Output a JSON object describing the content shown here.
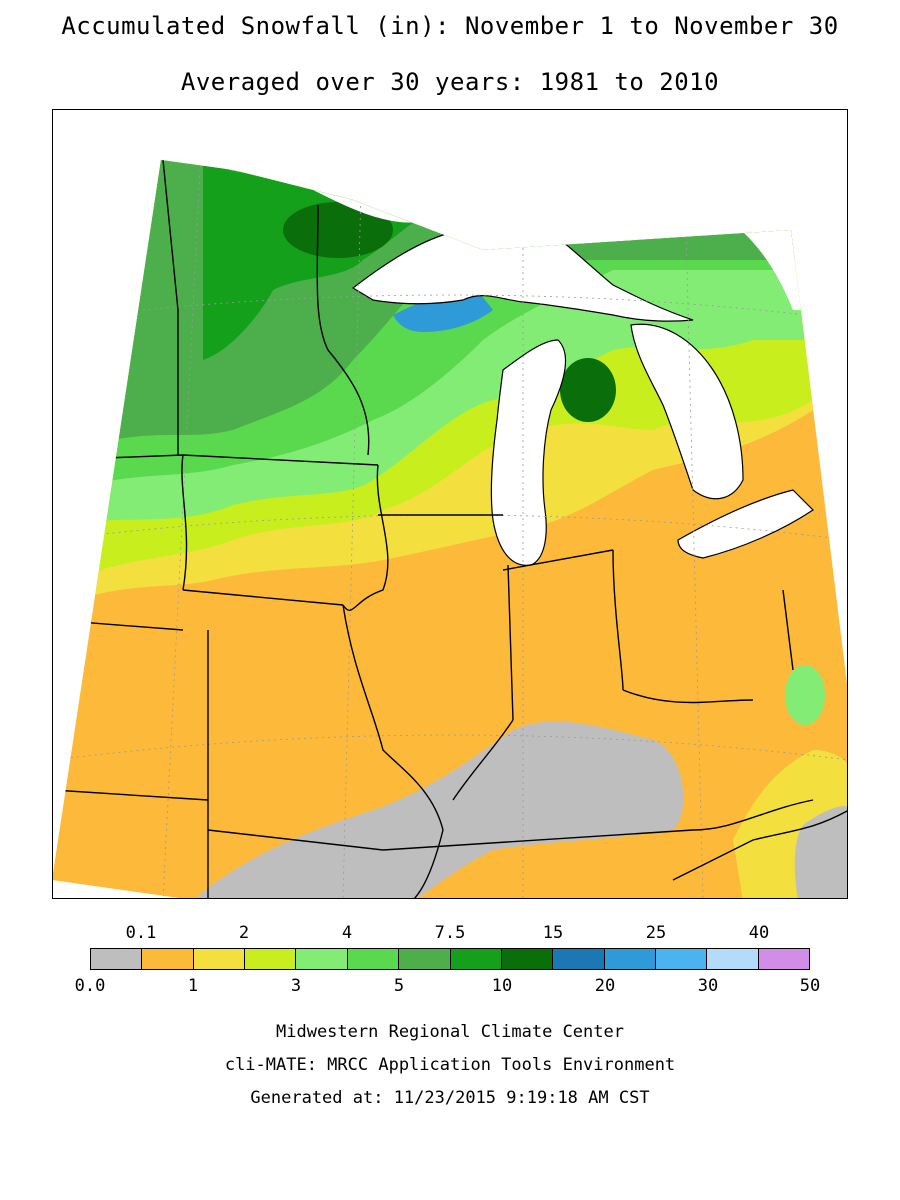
{
  "title": "Accumulated Snowfall (in): November 1 to November 30",
  "subtitle": "Averaged over 30 years: 1981 to 2010",
  "legend": {
    "top_labels": [
      "0.1",
      "2",
      "4",
      "7.5",
      "15",
      "25",
      "40"
    ],
    "bottom_labels": [
      "0.0",
      "1",
      "3",
      "5",
      "10",
      "20",
      "30",
      "50"
    ],
    "colors": [
      "#bebebe",
      "#fdb93a",
      "#f3e03e",
      "#c8ee1e",
      "#82ec74",
      "#5ad84e",
      "#4caf4c",
      "#14a01a",
      "#0a6e0a",
      "#1b78b4",
      "#2f9ad8",
      "#4ab4ef",
      "#b4dcfa",
      "#d08ee8"
    ]
  },
  "map": {
    "region": "Midwest US (MN, WI, MI, IA, MO, IL, IN, OH, KY)",
    "water_color": "#ffffff",
    "gridlines": true
  },
  "footer": {
    "line1": "Midwestern Regional Climate Center",
    "line2": "cli-MATE: MRCC Application Tools Environment",
    "line3": "Generated at: 11/23/2015 9:19:18 AM CST"
  }
}
